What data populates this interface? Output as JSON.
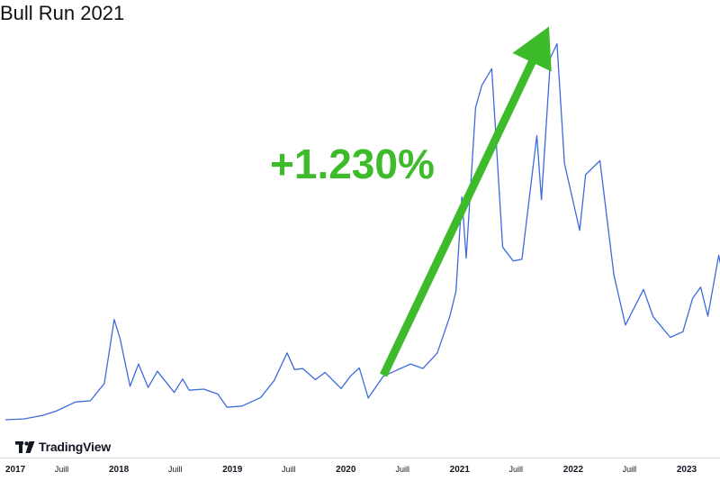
{
  "chart_data": {
    "type": "line",
    "title": "Bull Run 2021",
    "xlabel": "",
    "ylabel": "",
    "xlim": [
      "2017-01-01",
      "2023-05-01"
    ],
    "grid": false,
    "x_ticks": [
      "2017",
      "Juill",
      "2018",
      "Juill",
      "2019",
      "Juill",
      "2020",
      "Juill",
      "2021",
      "Juill",
      "2022",
      "Juill",
      "2023"
    ],
    "series": [
      {
        "color": "#3d6bdc",
        "points": [
          [
            "2017-01-01",
            1000
          ],
          [
            "2017-03-01",
            1150
          ],
          [
            "2017-05-01",
            1800
          ],
          [
            "2017-06-15",
            2600
          ],
          [
            "2017-08-15",
            4200
          ],
          [
            "2017-10-01",
            4400
          ],
          [
            "2017-11-15",
            7500
          ],
          [
            "2017-12-17",
            19000
          ],
          [
            "2018-01-05",
            15500
          ],
          [
            "2018-02-06",
            7000
          ],
          [
            "2018-03-05",
            11000
          ],
          [
            "2018-04-05",
            6800
          ],
          [
            "2018-05-05",
            9700
          ],
          [
            "2018-06-28",
            5900
          ],
          [
            "2018-07-25",
            8300
          ],
          [
            "2018-08-15",
            6300
          ],
          [
            "2018-10-01",
            6500
          ],
          [
            "2018-11-15",
            5600
          ],
          [
            "2018-12-15",
            3250
          ],
          [
            "2019-02-01",
            3450
          ],
          [
            "2019-04-02",
            5000
          ],
          [
            "2019-05-15",
            8000
          ],
          [
            "2019-06-26",
            13000
          ],
          [
            "2019-07-20",
            10000
          ],
          [
            "2019-08-15",
            10200
          ],
          [
            "2019-09-25",
            8200
          ],
          [
            "2019-10-26",
            9500
          ],
          [
            "2019-12-17",
            6600
          ],
          [
            "2020-01-15",
            8800
          ],
          [
            "2020-02-13",
            10300
          ],
          [
            "2020-03-13",
            4900
          ],
          [
            "2020-04-30",
            8800
          ],
          [
            "2020-06-01",
            9600
          ],
          [
            "2020-07-27",
            11000
          ],
          [
            "2020-09-05",
            10200
          ],
          [
            "2020-10-21",
            13000
          ],
          [
            "2020-11-30",
            19500
          ],
          [
            "2020-12-20",
            24000
          ],
          [
            "2021-01-08",
            41000
          ],
          [
            "2021-01-22",
            30000
          ],
          [
            "2021-02-21",
            57000
          ],
          [
            "2021-03-13",
            61000
          ],
          [
            "2021-04-14",
            64000
          ],
          [
            "2021-05-19",
            32000
          ],
          [
            "2021-06-22",
            29500
          ],
          [
            "2021-07-20",
            29800
          ],
          [
            "2021-09-06",
            52000
          ],
          [
            "2021-09-21",
            40500
          ],
          [
            "2021-10-20",
            66000
          ],
          [
            "2021-11-10",
            68500
          ],
          [
            "2021-12-04",
            47000
          ],
          [
            "2022-01-22",
            35000
          ],
          [
            "2022-02-10",
            45000
          ],
          [
            "2022-03-28",
            47500
          ],
          [
            "2022-05-12",
            27000
          ],
          [
            "2022-06-18",
            18000
          ],
          [
            "2022-08-15",
            24400
          ],
          [
            "2022-09-15",
            19500
          ],
          [
            "2022-11-09",
            15800
          ],
          [
            "2022-12-20",
            16800
          ],
          [
            "2023-01-20",
            22800
          ],
          [
            "2023-02-15",
            24800
          ],
          [
            "2023-03-10",
            19600
          ],
          [
            "2023-04-14",
            30500
          ],
          [
            "2023-04-25",
            27500
          ]
        ]
      }
    ],
    "annotation": {
      "text": "+1.230%",
      "color": "#3dbb2b",
      "from": [
        "2020-05-01",
        9000
      ],
      "to": [
        "2021-10-10",
        71000
      ]
    }
  },
  "branding": {
    "logo_text": "TradingView"
  }
}
